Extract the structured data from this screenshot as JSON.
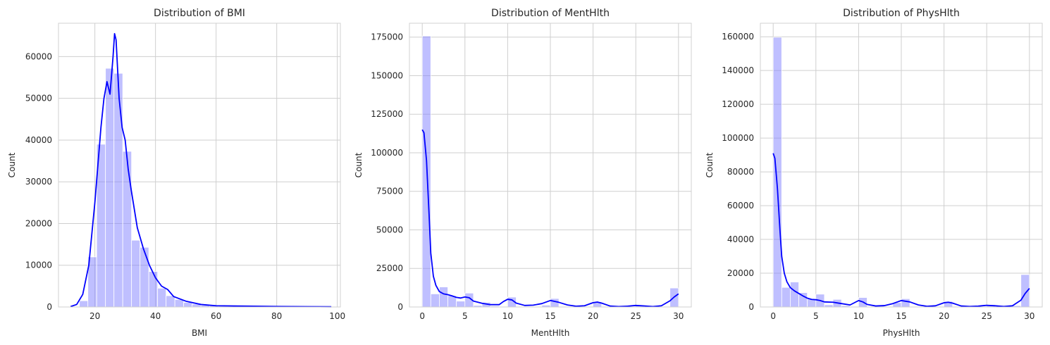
{
  "chart_data": [
    {
      "type": "histogram",
      "title": "Distribution of BMI",
      "xlabel": "BMI",
      "ylabel": "Count",
      "xlim": [
        8,
        101
      ],
      "ylim": [
        0,
        68000
      ],
      "xticks": [
        20,
        40,
        60,
        80,
        100
      ],
      "yticks": [
        0,
        10000,
        20000,
        30000,
        40000,
        50000,
        60000
      ],
      "grid": true,
      "bar_color": "#7f7fff",
      "kde_color": "#0000ff",
      "bins": [
        {
          "x0": 12.0,
          "x1": 14.9,
          "count": 100
        },
        {
          "x0": 14.9,
          "x1": 17.7,
          "count": 1500
        },
        {
          "x0": 17.7,
          "x1": 20.6,
          "count": 12000
        },
        {
          "x0": 20.6,
          "x1": 23.5,
          "count": 39000
        },
        {
          "x0": 23.5,
          "x1": 26.3,
          "count": 57200
        },
        {
          "x0": 26.3,
          "x1": 29.2,
          "count": 56000
        },
        {
          "x0": 29.2,
          "x1": 32.1,
          "count": 37300
        },
        {
          "x0": 32.1,
          "x1": 34.9,
          "count": 16000
        },
        {
          "x0": 34.9,
          "x1": 37.8,
          "count": 14300
        },
        {
          "x0": 37.8,
          "x1": 40.7,
          "count": 8500
        },
        {
          "x0": 40.7,
          "x1": 43.5,
          "count": 4500
        },
        {
          "x0": 43.5,
          "x1": 46.4,
          "count": 2700
        },
        {
          "x0": 46.4,
          "x1": 49.3,
          "count": 1800
        },
        {
          "x0": 49.3,
          "x1": 52.1,
          "count": 1100
        },
        {
          "x0": 52.1,
          "x1": 55.0,
          "count": 700
        },
        {
          "x0": 55.0,
          "x1": 57.9,
          "count": 400
        },
        {
          "x0": 57.9,
          "x1": 60.7,
          "count": 300
        },
        {
          "x0": 60.7,
          "x1": 63.6,
          "count": 200
        },
        {
          "x0": 63.6,
          "x1": 66.5,
          "count": 150
        },
        {
          "x0": 66.5,
          "x1": 69.3,
          "count": 120
        },
        {
          "x0": 69.3,
          "x1": 72.2,
          "count": 100
        },
        {
          "x0": 72.2,
          "x1": 75.1,
          "count": 120
        },
        {
          "x0": 75.1,
          "x1": 77.9,
          "count": 100
        },
        {
          "x0": 77.9,
          "x1": 80.8,
          "count": 100
        },
        {
          "x0": 80.8,
          "x1": 83.7,
          "count": 80
        },
        {
          "x0": 83.7,
          "x1": 86.5,
          "count": 60
        },
        {
          "x0": 86.5,
          "x1": 89.4,
          "count": 80
        },
        {
          "x0": 89.4,
          "x1": 92.3,
          "count": 60
        },
        {
          "x0": 92.3,
          "x1": 95.1,
          "count": 50
        },
        {
          "x0": 95.1,
          "x1": 98.0,
          "count": 50
        }
      ],
      "kde": {
        "x": [
          12,
          14,
          16,
          18,
          20,
          22,
          23,
          24,
          25,
          26,
          26.5,
          27,
          28,
          29,
          30,
          31,
          32,
          34,
          36,
          38,
          40,
          42,
          44,
          46,
          50,
          55,
          60,
          70,
          80,
          90,
          98
        ],
        "y": [
          100,
          600,
          3000,
          10000,
          25000,
          43000,
          50000,
          54000,
          51000,
          60000,
          65500,
          64000,
          50000,
          43000,
          40000,
          33000,
          28000,
          19000,
          14000,
          10000,
          7000,
          5000,
          4200,
          2500,
          1400,
          600,
          300,
          200,
          120,
          80,
          50
        ]
      }
    },
    {
      "type": "histogram",
      "title": "Distribution of MentHlth",
      "xlabel": "MentHlth",
      "ylabel": "Count",
      "xlim": [
        -1.5,
        31.5
      ],
      "ylim": [
        0,
        184000
      ],
      "xticks": [
        0,
        5,
        10,
        15,
        20,
        25,
        30
      ],
      "yticks": [
        0,
        25000,
        50000,
        75000,
        100000,
        125000,
        150000,
        175000
      ],
      "grid": true,
      "bar_color": "#7f7fff",
      "kde_color": "#0000ff",
      "bins": [
        {
          "x0": 0,
          "x1": 1,
          "count": 175700
        },
        {
          "x0": 1,
          "x1": 2,
          "count": 8500
        },
        {
          "x0": 2,
          "x1": 3,
          "count": 13000
        },
        {
          "x0": 3,
          "x1": 4,
          "count": 7400
        },
        {
          "x0": 4,
          "x1": 5,
          "count": 3800
        },
        {
          "x0": 5,
          "x1": 6,
          "count": 9000
        },
        {
          "x0": 6,
          "x1": 7,
          "count": 1000
        },
        {
          "x0": 7,
          "x1": 8,
          "count": 3000
        },
        {
          "x0": 8,
          "x1": 9,
          "count": 600
        },
        {
          "x0": 9,
          "x1": 10,
          "count": 100
        },
        {
          "x0": 10,
          "x1": 11,
          "count": 6400
        },
        {
          "x0": 11,
          "x1": 12,
          "count": 100
        },
        {
          "x0": 12,
          "x1": 13,
          "count": 400
        },
        {
          "x0": 13,
          "x1": 14,
          "count": 100
        },
        {
          "x0": 14,
          "x1": 15,
          "count": 1200
        },
        {
          "x0": 15,
          "x1": 16,
          "count": 5500
        },
        {
          "x0": 16,
          "x1": 17,
          "count": 100
        },
        {
          "x0": 17,
          "x1": 18,
          "count": 100
        },
        {
          "x0": 18,
          "x1": 19,
          "count": 100
        },
        {
          "x0": 19,
          "x1": 20,
          "count": 100
        },
        {
          "x0": 20,
          "x1": 21,
          "count": 3400
        },
        {
          "x0": 21,
          "x1": 22,
          "count": 100
        },
        {
          "x0": 22,
          "x1": 23,
          "count": 100
        },
        {
          "x0": 23,
          "x1": 24,
          "count": 100
        },
        {
          "x0": 24,
          "x1": 25,
          "count": 100
        },
        {
          "x0": 25,
          "x1": 26,
          "count": 1100
        },
        {
          "x0": 26,
          "x1": 27,
          "count": 100
        },
        {
          "x0": 27,
          "x1": 28,
          "count": 100
        },
        {
          "x0": 28,
          "x1": 29,
          "count": 300
        },
        {
          "x0": 29,
          "x1": 30,
          "count": 12300
        }
      ],
      "kde": {
        "x": [
          0,
          0.2,
          0.5,
          0.8,
          1.0,
          1.3,
          1.6,
          2,
          2.5,
          3,
          3.5,
          4,
          4.5,
          5,
          5.5,
          6,
          7,
          8,
          9,
          9.5,
          10,
          10.5,
          11,
          12,
          13,
          14,
          15,
          16,
          17,
          18,
          19,
          20,
          20.5,
          21,
          22,
          23,
          24,
          25,
          26,
          27,
          28,
          29,
          29.5,
          30
        ],
        "y": [
          115000,
          113000,
          95000,
          60000,
          35000,
          20000,
          14000,
          10000,
          8500,
          8000,
          7200,
          6200,
          5800,
          6500,
          6000,
          3800,
          2400,
          1500,
          1500,
          3500,
          5000,
          4600,
          2500,
          1000,
          1200,
          2200,
          4200,
          3000,
          1300,
          500,
          800,
          2800,
          3200,
          2500,
          600,
          300,
          500,
          1000,
          700,
          300,
          800,
          4000,
          6500,
          8500
        ]
      }
    },
    {
      "type": "histogram",
      "title": "Distribution of PhysHlth",
      "xlabel": "PhysHlth",
      "ylabel": "Count",
      "xlim": [
        -1.5,
        31.5
      ],
      "ylim": [
        0,
        168000
      ],
      "xticks": [
        0,
        5,
        10,
        15,
        20,
        25,
        30
      ],
      "yticks": [
        0,
        20000,
        40000,
        60000,
        80000,
        100000,
        120000,
        140000,
        160000
      ],
      "grid": true,
      "bar_color": "#7f7fff",
      "kde_color": "#0000ff",
      "bins": [
        {
          "x0": 0,
          "x1": 1,
          "count": 159700
        },
        {
          "x0": 1,
          "x1": 2,
          "count": 11600
        },
        {
          "x0": 2,
          "x1": 3,
          "count": 14800
        },
        {
          "x0": 3,
          "x1": 4,
          "count": 8500
        },
        {
          "x0": 4,
          "x1": 5,
          "count": 4700
        },
        {
          "x0": 5,
          "x1": 6,
          "count": 7600
        },
        {
          "x0": 6,
          "x1": 7,
          "count": 1300
        },
        {
          "x0": 7,
          "x1": 8,
          "count": 4500
        },
        {
          "x0": 8,
          "x1": 9,
          "count": 800
        },
        {
          "x0": 9,
          "x1": 10,
          "count": 200
        },
        {
          "x0": 10,
          "x1": 11,
          "count": 5600
        },
        {
          "x0": 11,
          "x1": 12,
          "count": 100
        },
        {
          "x0": 12,
          "x1": 13,
          "count": 600
        },
        {
          "x0": 13,
          "x1": 14,
          "count": 200
        },
        {
          "x0": 14,
          "x1": 15,
          "count": 2600
        },
        {
          "x0": 15,
          "x1": 16,
          "count": 4900
        },
        {
          "x0": 16,
          "x1": 17,
          "count": 100
        },
        {
          "x0": 17,
          "x1": 18,
          "count": 100
        },
        {
          "x0": 18,
          "x1": 19,
          "count": 100
        },
        {
          "x0": 19,
          "x1": 20,
          "count": 100
        },
        {
          "x0": 20,
          "x1": 21,
          "count": 3300
        },
        {
          "x0": 21,
          "x1": 22,
          "count": 300
        },
        {
          "x0": 22,
          "x1": 23,
          "count": 100
        },
        {
          "x0": 23,
          "x1": 24,
          "count": 100
        },
        {
          "x0": 24,
          "x1": 25,
          "count": 100
        },
        {
          "x0": 25,
          "x1": 26,
          "count": 1300
        },
        {
          "x0": 26,
          "x1": 27,
          "count": 100
        },
        {
          "x0": 27,
          "x1": 28,
          "count": 200
        },
        {
          "x0": 28,
          "x1": 29,
          "count": 800
        },
        {
          "x0": 29,
          "x1": 30,
          "count": 19200
        }
      ],
      "kde": {
        "x": [
          0,
          0.2,
          0.5,
          0.8,
          1.0,
          1.3,
          1.6,
          2,
          2.5,
          3,
          3.5,
          4,
          4.5,
          5,
          5.5,
          6,
          7,
          8,
          9,
          9.5,
          10,
          10.5,
          11,
          12,
          13,
          14,
          15,
          16,
          17,
          18,
          19,
          20,
          20.5,
          21,
          22,
          23,
          24,
          25,
          26,
          27,
          28,
          29,
          29.5,
          30
        ],
        "y": [
          91000,
          88000,
          70000,
          45000,
          30000,
          20000,
          15000,
          11500,
          9500,
          8000,
          6500,
          5200,
          4500,
          4300,
          3800,
          3000,
          2800,
          2000,
          1200,
          2500,
          3800,
          3000,
          1500,
          600,
          800,
          2000,
          3800,
          3000,
          1200,
          400,
          700,
          2500,
          2800,
          2300,
          600,
          300,
          500,
          1000,
          700,
          300,
          700,
          4000,
          8000,
          11000
        ]
      }
    }
  ]
}
